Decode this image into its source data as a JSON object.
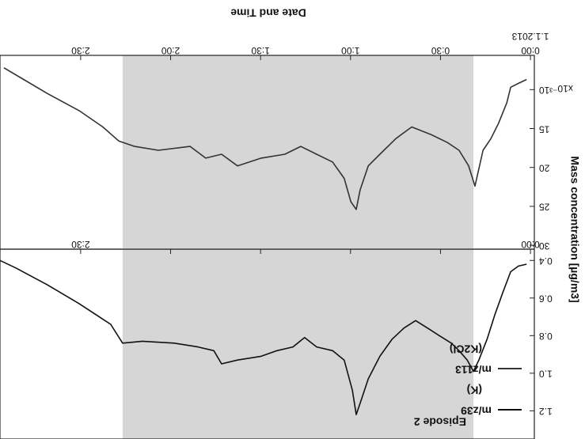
{
  "chart_data": [
    {
      "type": "line",
      "title": "Episode 2",
      "ylabel": "Mass concentration [µg/m3]",
      "x": [
        1.3,
        4.0,
        6.6,
        9.2,
        11.9,
        14.5,
        17.2,
        19.0,
        21.1,
        23.8,
        26.4,
        30.4,
        34.3,
        38.3,
        42.2,
        46.2,
        50.2,
        54.1,
        56.8,
        58.1,
        59.4,
        62.1,
        66.0,
        71.3,
        75.3,
        79.2,
        84.5,
        89.8,
        97.7,
        103.0,
        105.6,
        110.9,
        118.8,
        129.4,
        136.0,
        140.0,
        150.5,
        161.1,
        171.6,
        176.9
      ],
      "series": [
        {
          "name": "m/z39",
          "ion": "(K)",
          "color": "#111111",
          "values": [
            0.42,
            0.43,
            0.46,
            0.57,
            0.69,
            0.82,
            0.93,
            0.99,
            0.93,
            0.88,
            0.84,
            0.8,
            0.76,
            0.72,
            0.76,
            0.82,
            0.91,
            1.03,
            1.16,
            1.22,
            1.09,
            0.93,
            0.88,
            0.86,
            0.81,
            0.86,
            0.88,
            0.91,
            0.93,
            0.95,
            0.88,
            0.86,
            0.84,
            0.83,
            0.84,
            0.74,
            0.63,
            0.53,
            0.44,
            0.4
          ]
        }
      ],
      "xlim": [
        -1.3,
        176.9
      ],
      "xticks": [
        {
          "value": 0,
          "label": "0:00"
        },
        {
          "value": 30,
          "label": "0:30"
        },
        {
          "value": 60,
          "label": "1:00"
        },
        {
          "value": 90,
          "label": "1:30"
        },
        {
          "value": 120,
          "label": "2:00"
        },
        {
          "value": 150,
          "label": "2:30"
        }
      ],
      "ylim": [
        0.34,
        1.35
      ],
      "yticks": [
        0.4,
        0.6,
        0.8,
        {
          "value": 1,
          "label": "1.0"
        },
        1.2
      ],
      "shade": [
        19,
        136
      ],
      "shade_color": "#d6d6d6",
      "legend": "upper left"
    },
    {
      "type": "line",
      "xlabel": "Date and Time",
      "date_label": "1.1.2013",
      "y_multiplier": "x10⁻³",
      "x": [
        1.3,
        4.0,
        6.6,
        7.9,
        10.6,
        13.2,
        15.8,
        18.5,
        20.6,
        23.8,
        27.7,
        33.0,
        39.6,
        44.9,
        50.2,
        54.1,
        56.8,
        58.1,
        59.9,
        62.1,
        66.0,
        71.3,
        76.6,
        81.9,
        89.8,
        97.7,
        103.0,
        108.3,
        113.5,
        124.1,
        132.0,
        137.3,
        142.6,
        150.5,
        161.1,
        169.0,
        175.6
      ],
      "series": [
        {
          "name": "m/z113",
          "ion": "(K2Cl)",
          "color": "#333333",
          "values": [
            8.7,
            9.2,
            9.7,
            11.7,
            14.3,
            16.3,
            17.8,
            22.4,
            19.8,
            17.8,
            16.8,
            15.8,
            14.8,
            16.3,
            18.3,
            19.8,
            22.9,
            25.4,
            24.4,
            21.4,
            19.3,
            18.3,
            17.3,
            18.3,
            18.8,
            19.8,
            18.3,
            18.8,
            17.3,
            17.8,
            17.3,
            16.6,
            14.8,
            12.7,
            10.5,
            8.7,
            7.2
          ]
        }
      ],
      "xlim": [
        -1.3,
        176.9
      ],
      "xticks": [
        {
          "value": 0,
          "label": "0:00"
        },
        {
          "value": 30,
          "label": "0:30"
        },
        {
          "value": 60,
          "label": "1:00"
        },
        {
          "value": 90,
          "label": "1:30"
        },
        {
          "value": 120,
          "label": "2:00"
        },
        {
          "value": 150,
          "label": "2:30"
        }
      ],
      "ylim": [
        5.6,
        30.5
      ],
      "yticks": [
        10,
        15,
        20,
        25,
        30
      ],
      "shade": [
        19,
        136
      ],
      "shade_color": "#d6d6d6"
    }
  ]
}
